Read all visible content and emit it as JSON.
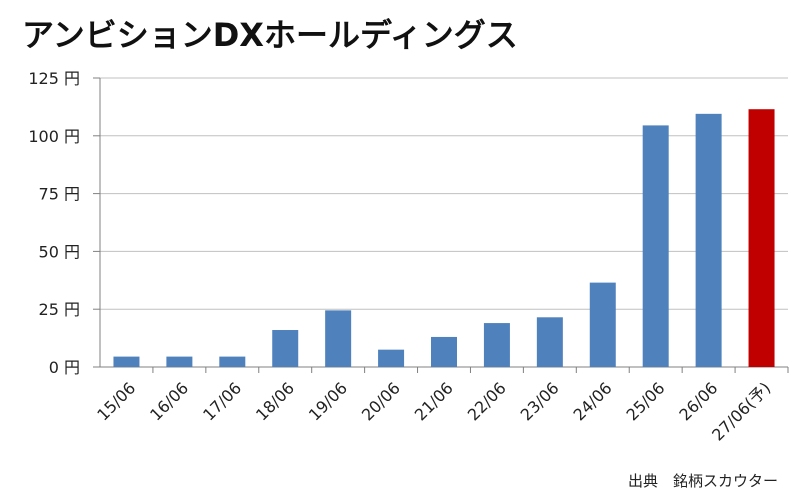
{
  "title": "アンビションDXホールディングス",
  "source": "出典　銘柄スカウター",
  "chart_data": {
    "type": "bar",
    "title": "アンビションDXホールディングス",
    "xlabel": "",
    "ylabel": "",
    "y_unit": "円",
    "ylim": [
      0,
      125
    ],
    "y_ticks": [
      0,
      25,
      50,
      75,
      100,
      125
    ],
    "y_tick_labels": [
      "0 円",
      "25 円",
      "50 円",
      "75 円",
      "100 円",
      "125 円"
    ],
    "grid": true,
    "legend": "none",
    "categories": [
      "15/06",
      "16/06",
      "17/06",
      "18/06",
      "19/06",
      "20/06",
      "21/06",
      "22/06",
      "23/06",
      "24/06",
      "25/06",
      "26/06",
      "27/06(予)"
    ],
    "values": [
      4.5,
      4.5,
      4.5,
      16,
      24.5,
      7.5,
      13,
      19,
      21.5,
      36.5,
      104.5,
      109.5,
      111.5
    ],
    "colors": {
      "actual": "#4f81bd",
      "forecast": "#c00000",
      "grid": "#c0c0c0",
      "axis": "#808080"
    },
    "forecast_index": 12
  }
}
